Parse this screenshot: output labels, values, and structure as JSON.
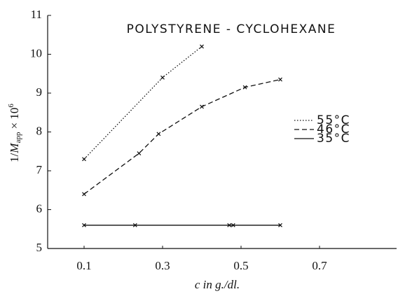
{
  "chart_data": {
    "type": "line",
    "title": "POLYSTYRENE - CYCLOHEXANE",
    "xlabel": "c in g./dl.",
    "ylabel": {
      "pre": "1/",
      "var": "M",
      "sub": "app",
      "mid": " × 10",
      "sup": "6"
    },
    "xlim": [
      0,
      0.9
    ],
    "ylim": [
      5,
      11
    ],
    "xticks": [
      0.1,
      0.3,
      0.5,
      0.7
    ],
    "yticks": [
      5,
      6,
      7,
      8,
      9,
      10,
      11
    ],
    "legend": "right",
    "series": [
      {
        "name": "55°C",
        "color": "#111",
        "dash": "dotted",
        "x": [
          0.1,
          0.3,
          0.4
        ],
        "values": [
          7.3,
          9.4,
          10.2
        ]
      },
      {
        "name": "46°C",
        "color": "#111",
        "dash": "dashed",
        "x": [
          0.1,
          0.24,
          0.29,
          0.4,
          0.51,
          0.6
        ],
        "values": [
          6.4,
          7.45,
          7.95,
          8.65,
          9.15,
          9.35
        ]
      },
      {
        "name": "35°C",
        "color": "#111",
        "dash": "solid",
        "x": [
          0.1,
          0.23,
          0.47,
          0.48,
          0.6
        ],
        "values": [
          5.6,
          5.6,
          5.6,
          5.6,
          5.6
        ]
      }
    ]
  }
}
